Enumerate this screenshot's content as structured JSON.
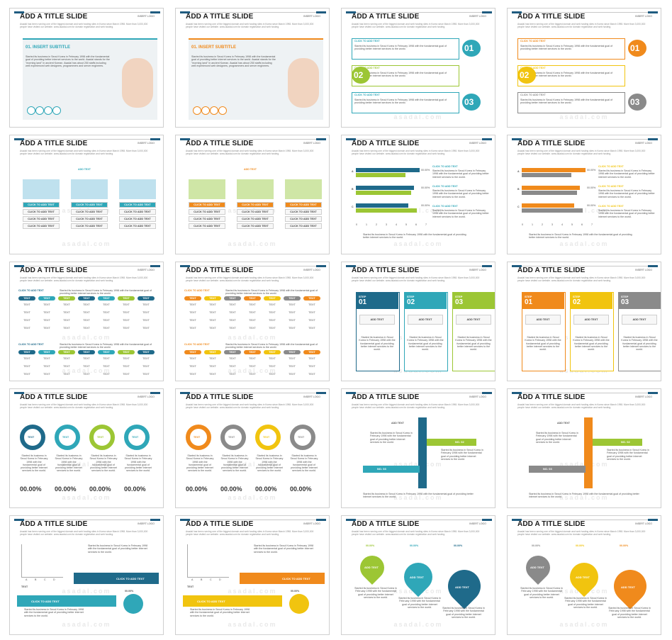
{
  "slides": {
    "title": "ADD A TITLE SLIDE",
    "logo": "INSERT LOGO",
    "subtitle_text": "Asadal has been running one of the biggest domain and web hosting sites in Korea since March 1998. More than 3,000,000 people have visited our website. www.asadal.com for domain registration and web hosting.",
    "watermark": "asadal.com"
  },
  "subtitle_card": {
    "label": "01. INSERT SUBTITLE",
    "chevrons": ">>",
    "body": "Started its business in Seoul Korea in February 1998 with the fundamental goal of providing better internet services to the world. Asadal stands for the \"morning land\" in ancient Korean. Asadal has about 250 staffs including well experienced web designers, programmers and server engineers."
  },
  "click_add": "CLICK TO ADD TEXT",
  "add_text": "ADD TEXT",
  "text_word": "TEXT",
  "percent": "00.00%",
  "step": "STEP",
  "numbers": [
    "01",
    "02",
    "03"
  ],
  "no_labels": [
    "NO. 01",
    "NO. 02",
    "NO. 03"
  ],
  "bar_categories": [
    "A",
    "B",
    "C"
  ],
  "axis_ticks": [
    "0",
    "1",
    "2",
    "3",
    "4",
    "5",
    "6",
    "7"
  ],
  "chart_axis": [
    "A",
    "B",
    "C",
    "D"
  ],
  "short_body": "Started its business in Seoul Korea in February 1998 with the fundamental goal of providing better internet services to the world.",
  "colors": {
    "blue": "#1f6a8a",
    "teal": "#2fa7b8",
    "green": "#9cc634",
    "orange": "#f08a1c",
    "yellow": "#f1c40f",
    "gray": "#8a8a8a"
  }
}
